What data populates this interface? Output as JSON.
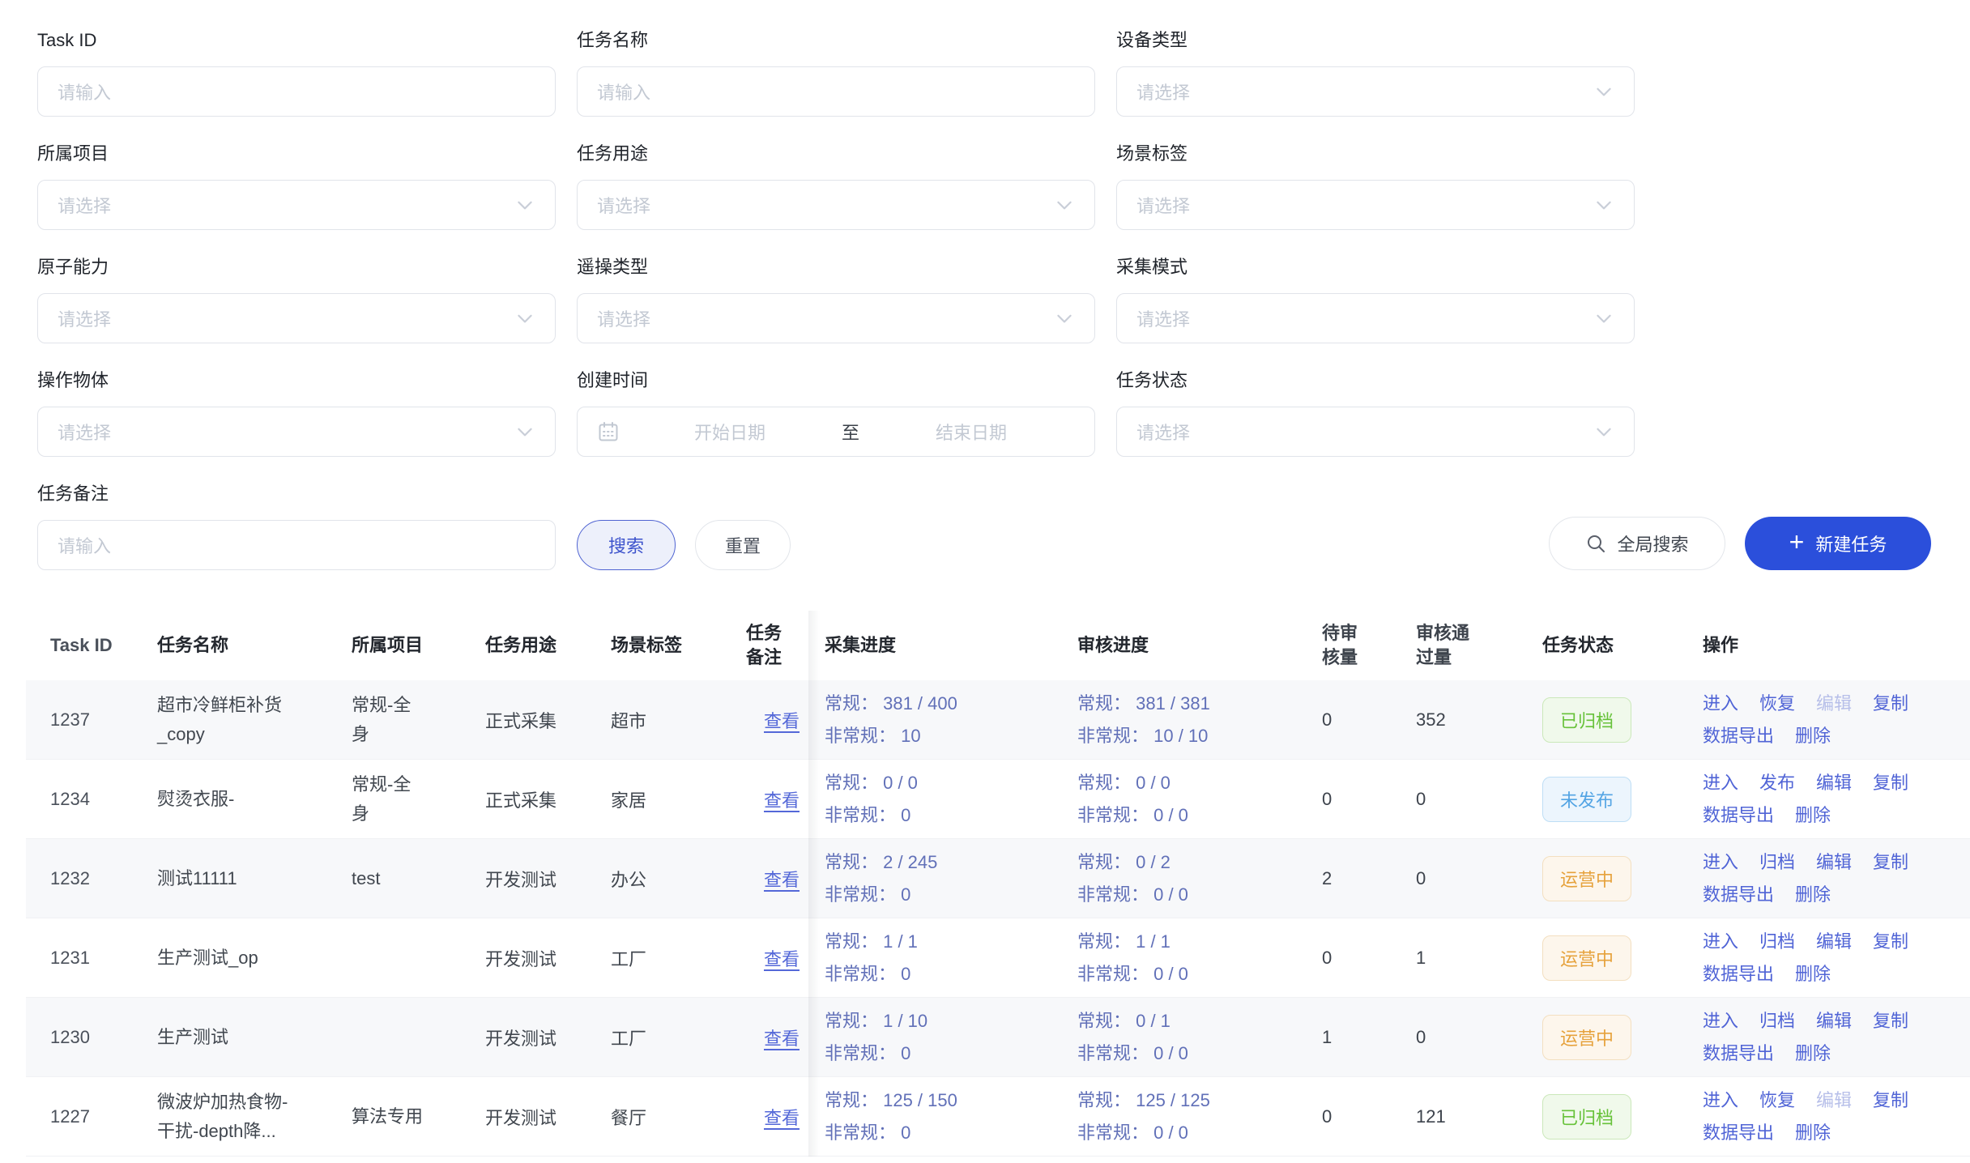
{
  "colors": {
    "primary_blue": "#2b4fdb",
    "search_button_text": "#3d53cc",
    "link_blue": "#5064d6",
    "progress_text": "#6170b8",
    "status_archived_green": "#67c23a",
    "status_unpublished_blue": "#53a4e4",
    "status_operating_orange": "#e6a23c",
    "row_alt_background": "#f7f8fa"
  },
  "filters": {
    "fields": [
      {
        "label": "Task ID",
        "type": "input",
        "placeholder": "请输入"
      },
      {
        "label": "任务名称",
        "type": "input",
        "placeholder": "请输入"
      },
      {
        "label": "设备类型",
        "type": "select",
        "placeholder": "请选择"
      },
      {
        "label": "所属项目",
        "type": "select",
        "placeholder": "请选择"
      },
      {
        "label": "任务用途",
        "type": "select",
        "placeholder": "请选择"
      },
      {
        "label": "场景标签",
        "type": "select",
        "placeholder": "请选择"
      },
      {
        "label": "原子能力",
        "type": "select",
        "placeholder": "请选择"
      },
      {
        "label": "遥操类型",
        "type": "select",
        "placeholder": "请选择"
      },
      {
        "label": "采集模式",
        "type": "select",
        "placeholder": "请选择"
      },
      {
        "label": "操作物体",
        "type": "select",
        "placeholder": "请选择"
      },
      {
        "label": "创建时间",
        "type": "daterange",
        "start_placeholder": "开始日期",
        "separator": "至",
        "end_placeholder": "结束日期"
      },
      {
        "label": "任务状态",
        "type": "select",
        "placeholder": "请选择"
      }
    ],
    "remark": {
      "label": "任务备注",
      "placeholder": "请输入"
    },
    "search_label": "搜索",
    "reset_label": "重置",
    "global_search_label": "全局搜索",
    "new_task_label": "新建任务",
    "plus_icon": "+"
  },
  "table": {
    "columns": [
      "Task ID",
      "任务名称",
      "所属项目",
      "任务用途",
      "场景标签",
      "任务备注",
      "采集进度",
      "审核进度",
      "待审\n核量",
      "审核通\n过量",
      "任务状态",
      "操作"
    ],
    "view_label": "查看",
    "rows": [
      {
        "task_id": "1237",
        "name": "超市冷鲜柜补货\n_copy",
        "project": "常规-全\n身",
        "purpose": "正式采集",
        "scene": "超市",
        "collect_line1": "常规： 381 / 400",
        "collect_line2": "非常规： 10",
        "review_line1": "常规： 381 / 381",
        "review_line2": "非常规： 10 / 10",
        "pending": "0",
        "passed": "352",
        "status": {
          "label": "已归档",
          "variant": "archived"
        },
        "actions": [
          {
            "label": "进入"
          },
          {
            "label": "恢复"
          },
          {
            "label": "编辑",
            "disabled": true
          },
          {
            "label": "复制"
          },
          {
            "label": "数据导出"
          },
          {
            "label": "删除"
          }
        ]
      },
      {
        "task_id": "1234",
        "name": "熨烫衣服-",
        "project": "常规-全\n身",
        "purpose": "正式采集",
        "scene": "家居",
        "collect_line1": "常规： 0 / 0",
        "collect_line2": "非常规： 0",
        "review_line1": "常规： 0 / 0",
        "review_line2": "非常规： 0 / 0",
        "pending": "0",
        "passed": "0",
        "status": {
          "label": "未发布",
          "variant": "unpublished"
        },
        "actions": [
          {
            "label": "进入"
          },
          {
            "label": "发布"
          },
          {
            "label": "编辑"
          },
          {
            "label": "复制"
          },
          {
            "label": "数据导出"
          },
          {
            "label": "删除"
          }
        ]
      },
      {
        "task_id": "1232",
        "name": "测试11111",
        "project": "test",
        "purpose": "开发测试",
        "scene": "办公",
        "collect_line1": "常规： 2 / 245",
        "collect_line2": "非常规： 0",
        "review_line1": "常规： 0 / 2",
        "review_line2": "非常规： 0 / 0",
        "pending": "2",
        "passed": "0",
        "status": {
          "label": "运营中",
          "variant": "operating"
        },
        "actions": [
          {
            "label": "进入"
          },
          {
            "label": "归档"
          },
          {
            "label": "编辑"
          },
          {
            "label": "复制"
          },
          {
            "label": "数据导出"
          },
          {
            "label": "删除"
          }
        ]
      },
      {
        "task_id": "1231",
        "name": "生产测试_op",
        "project": "",
        "purpose": "开发测试",
        "scene": "工厂",
        "collect_line1": "常规： 1 / 1",
        "collect_line2": "非常规： 0",
        "review_line1": "常规： 1 / 1",
        "review_line2": "非常规： 0 / 0",
        "pending": "0",
        "passed": "1",
        "status": {
          "label": "运营中",
          "variant": "operating"
        },
        "actions": [
          {
            "label": "进入"
          },
          {
            "label": "归档"
          },
          {
            "label": "编辑"
          },
          {
            "label": "复制"
          },
          {
            "label": "数据导出"
          },
          {
            "label": "删除"
          }
        ]
      },
      {
        "task_id": "1230",
        "name": "生产测试",
        "project": "",
        "purpose": "开发测试",
        "scene": "工厂",
        "collect_line1": "常规： 1 / 10",
        "collect_line2": "非常规： 0",
        "review_line1": "常规： 0 / 1",
        "review_line2": "非常规： 0 / 0",
        "pending": "1",
        "passed": "0",
        "status": {
          "label": "运营中",
          "variant": "operating"
        },
        "actions": [
          {
            "label": "进入"
          },
          {
            "label": "归档"
          },
          {
            "label": "编辑"
          },
          {
            "label": "复制"
          },
          {
            "label": "数据导出"
          },
          {
            "label": "删除"
          }
        ]
      },
      {
        "task_id": "1227",
        "name": "微波炉加热食物-\n干扰-depth降...",
        "project": "算法专用",
        "purpose": "开发测试",
        "scene": "餐厅",
        "collect_line1": "常规： 125 / 150",
        "collect_line2": "非常规： 0",
        "review_line1": "常规： 125 / 125",
        "review_line2": "非常规： 0 / 0",
        "pending": "0",
        "passed": "121",
        "status": {
          "label": "已归档",
          "variant": "archived"
        },
        "actions": [
          {
            "label": "进入"
          },
          {
            "label": "恢复"
          },
          {
            "label": "编辑",
            "disabled": true
          },
          {
            "label": "复制"
          },
          {
            "label": "数据导出"
          },
          {
            "label": "删除"
          }
        ]
      }
    ]
  }
}
